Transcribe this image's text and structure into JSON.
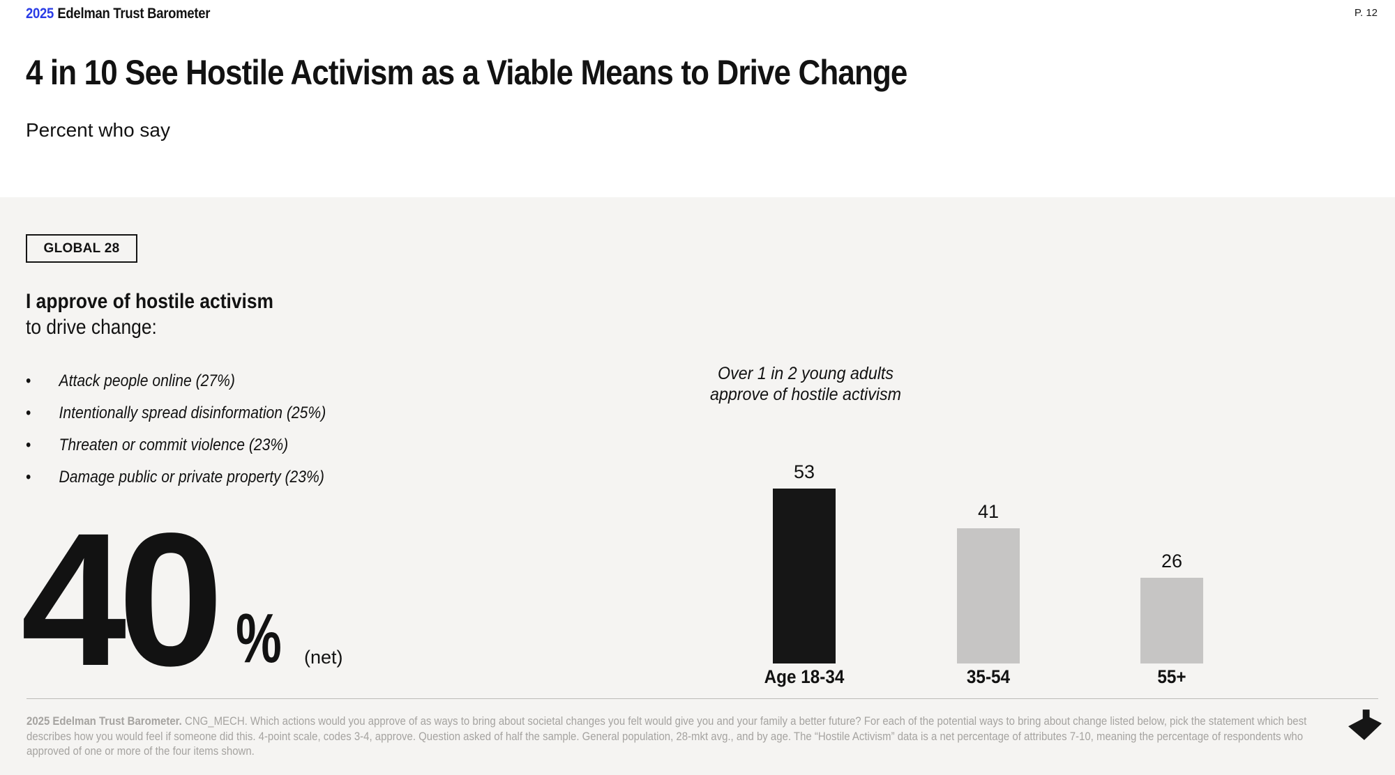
{
  "header": {
    "logo_year": "2025",
    "logo_name": "Edelman Trust Barometer",
    "page_number": "P. 12"
  },
  "title": "4 in 10 See Hostile Activism as a Viable Means to Drive Change",
  "subtitle": "Percent who say",
  "badge": "GLOBAL 28",
  "statement": {
    "line1": "I approve of hostile activism",
    "line2": "to drive change:"
  },
  "bullets": [
    "Attack people online (27%)",
    "Intentionally spread disinformation (25%)",
    "Threaten or commit violence (23%)",
    "Damage public or private property (23%)"
  ],
  "big_stat": {
    "value": "40",
    "percent_sign": "%",
    "suffix": "(net)"
  },
  "chart_data": {
    "type": "bar",
    "title": "Over 1 in 2 young adults approve of hostile activism",
    "annotation_lines": [
      "Over 1 in 2 young adults",
      "approve of hostile activism"
    ],
    "categories": [
      "Age 18-34",
      "35-54",
      "55+"
    ],
    "values": [
      53,
      41,
      26
    ],
    "bar_colors": [
      "#161616",
      "#c6c5c4",
      "#c6c5c4"
    ],
    "value_labels_shown": true,
    "xlabel": "",
    "ylabel": "",
    "ylim": [
      0,
      60
    ],
    "grid": false,
    "legend": "none"
  },
  "footnote": {
    "lead": "2025 Edelman Trust Barometer.",
    "body": " CNG_MECH. Which actions would you approve of as ways to bring about societal changes you felt would give you and your family a better future? For each of the potential ways to bring about change listed below, pick the statement which best describes how you would feel if someone did this. 4-point scale, codes 3-4, approve. Question asked of half the sample. General population, 28-mkt avg., and by age. The “Hostile Activism” data is a net percentage of attributes 7-10, meaning the percentage of respondents who approved of one or more of the four items shown."
  },
  "icons": {
    "arrow": "next-arrow-icon"
  },
  "colors": {
    "accent_blue": "#2a3ce6",
    "panel_gray": "#f5f4f2",
    "bar_black": "#161616",
    "bar_gray": "#c6c5c4",
    "footnote_gray": "#a5a3a0",
    "text_black": "#121212"
  }
}
